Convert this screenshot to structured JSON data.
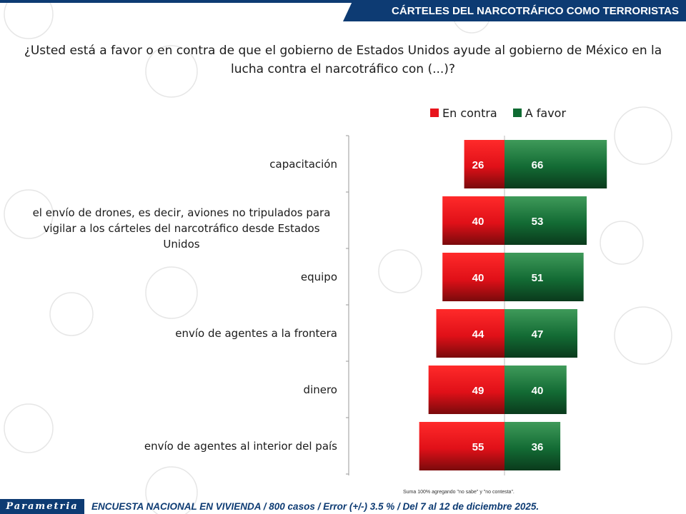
{
  "header": {
    "title": "CÁRTELES DEL NARCOTRÁFICO COMO TERRORISTAS"
  },
  "question": "¿Usted está a favor o en contra de que el gobierno de Estados Unidos ayude al gobierno de México en la lucha contra el narcotráfico con (...)?",
  "legend": {
    "contra": "En contra",
    "favor": "A favor"
  },
  "colors": {
    "contra": "#e8141c",
    "favor": "#0f6b32",
    "header": "#0d3b73"
  },
  "chart_data": {
    "type": "bar",
    "orientation": "horizontal-diverging",
    "categories": [
      "capacitación",
      "el envío de drones, es decir, aviones no tripulados para vigilar a los cárteles del narcotráfico desde Estados Unidos",
      "equipo",
      "envío de agentes a la frontera",
      "dinero",
      "envío de agentes al interior del país"
    ],
    "series": [
      {
        "name": "En contra",
        "values": [
          26,
          40,
          40,
          44,
          49,
          55
        ]
      },
      {
        "name": "A favor",
        "values": [
          66,
          53,
          51,
          47,
          40,
          36
        ]
      }
    ],
    "legend_position": "top-right",
    "grid": false
  },
  "footnote": "Suma 100% agregando \"no sabe\" y \"no contesta\".",
  "footer": {
    "logo": "Parametria",
    "text": "ENCUESTA NACIONAL EN VIVIENDA / 800 casos / Error (+/-) 3.5 % / Del 7 al 12 de diciembre 2025."
  }
}
